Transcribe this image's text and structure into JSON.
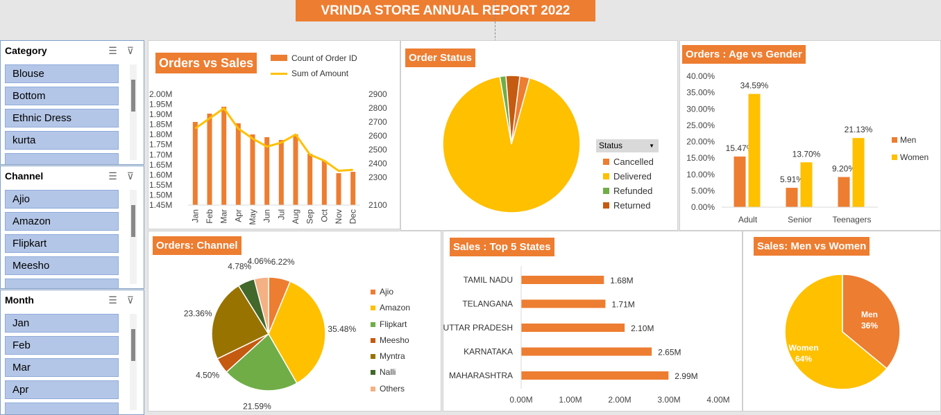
{
  "report_title": "VRINDA STORE ANNUAL REPORT 2022",
  "slicers": [
    {
      "title": "Category",
      "items": [
        "Blouse",
        "Bottom",
        "Ethnic Dress",
        "kurta"
      ]
    },
    {
      "title": "Channel",
      "items": [
        "Ajio",
        "Amazon",
        "Flipkart",
        "Meesho"
      ]
    },
    {
      "title": "Month",
      "items": [
        "Jan",
        "Feb",
        "Mar",
        "Apr"
      ]
    }
  ],
  "icons": {
    "multi_select": "multi-select-icon",
    "clear_filter": "clear-filter-icon"
  },
  "colors": {
    "orange": "#ed7d31",
    "gold": "#ffc000",
    "green": "#70ad47",
    "brown": "#c55a11",
    "olive": "#997300",
    "darkgreen": "#43682b",
    "lightorange": "#f4b183"
  },
  "chart_data": [
    {
      "type": "bar",
      "title": "Orders vs Sales",
      "categories": [
        "Jan",
        "Feb",
        "Mar",
        "Apr",
        "May",
        "Jun",
        "Jul",
        "Aug",
        "Sep",
        "Oct",
        "Nov",
        "Dec"
      ],
      "series": [
        {
          "name": "Count of Order ID",
          "type": "bar",
          "axis": "right",
          "values": [
            2700,
            2760,
            2810,
            2690,
            2610,
            2590,
            2570,
            2610,
            2470,
            2420,
            2330,
            2340
          ]
        },
        {
          "name": "Sum of Amount",
          "type": "line",
          "axis": "left",
          "values": [
            1830000,
            1880000,
            1930000,
            1830000,
            1780000,
            1740000,
            1760000,
            1800000,
            1700000,
            1670000,
            1620000,
            1625000
          ]
        }
      ],
      "y_left_ticks": [
        "2.00M",
        "1.95M",
        "1.90M",
        "1.85M",
        "1.80M",
        "1.75M",
        "1.70M",
        "1.65M",
        "1.60M",
        "1.55M",
        "1.50M",
        "1.45M"
      ],
      "y_right_ticks": [
        "2900",
        "2800",
        "2700",
        "2600",
        "2500",
        "2400",
        "2300",
        "2100"
      ],
      "ylim_left": [
        1450000,
        2000000
      ],
      "ylim_right": [
        2100,
        2900
      ],
      "legend": "top-right"
    },
    {
      "type": "pie",
      "title": "Order Status",
      "legend_title": "Status",
      "slices": [
        {
          "name": "Cancelled",
          "value": 2.3
        },
        {
          "name": "Delivered",
          "value": 92.1
        },
        {
          "name": "Refunded",
          "value": 1.4
        },
        {
          "name": "Returned",
          "value": 3.2
        }
      ],
      "legend": "right"
    },
    {
      "type": "bar",
      "title": "Orders : Age vs Gender",
      "categories": [
        "Adult",
        "Senior",
        "Teenagers"
      ],
      "series": [
        {
          "name": "Men",
          "values": [
            15.47,
            5.91,
            9.2
          ],
          "labels": [
            "15.47%",
            "5.91%",
            "9.20%"
          ]
        },
        {
          "name": "Women",
          "values": [
            34.59,
            13.7,
            21.13
          ],
          "labels": [
            "34.59%",
            "13.70%",
            "21.13%"
          ]
        }
      ],
      "y_ticks": [
        "40.00%",
        "35.00%",
        "30.00%",
        "25.00%",
        "20.00%",
        "15.00%",
        "10.00%",
        "5.00%",
        "0.00%"
      ],
      "ylim": [
        0,
        40
      ],
      "legend": "right"
    },
    {
      "type": "pie",
      "title": "Orders: Channel",
      "slices": [
        {
          "name": "Ajio",
          "value": 6.22,
          "label": "6.22%"
        },
        {
          "name": "Amazon",
          "value": 35.48,
          "label": "35.48%"
        },
        {
          "name": "Flipkart",
          "value": 21.59,
          "label": "21.59%"
        },
        {
          "name": "Meesho",
          "value": 4.5,
          "label": "4.50%"
        },
        {
          "name": "Myntra",
          "value": 23.36,
          "label": "23.36%"
        },
        {
          "name": "Nalli",
          "value": 4.78,
          "label": "4.78%"
        },
        {
          "name": "Others",
          "value": 4.06,
          "label": "4.06%"
        }
      ],
      "legend": "right"
    },
    {
      "type": "bar",
      "orientation": "horizontal",
      "title": "Sales : Top 5 States",
      "categories": [
        "TAMIL NADU",
        "TELANGANA",
        "UTTAR PRADESH",
        "KARNATAKA",
        "MAHARASHTRA"
      ],
      "values": [
        1.68,
        1.71,
        2.1,
        2.65,
        2.99
      ],
      "labels": [
        "1.68M",
        "1.71M",
        "2.10M",
        "2.65M",
        "2.99M"
      ],
      "x_ticks": [
        "0.00M",
        "1.00M",
        "2.00M",
        "3.00M",
        "4.00M"
      ],
      "xlim": [
        0,
        4
      ]
    },
    {
      "type": "pie",
      "title": "Sales: Men vs Women",
      "slices": [
        {
          "name": "Men",
          "value": 36,
          "label": "36%"
        },
        {
          "name": "Women",
          "value": 64,
          "label": "64%"
        }
      ]
    }
  ]
}
